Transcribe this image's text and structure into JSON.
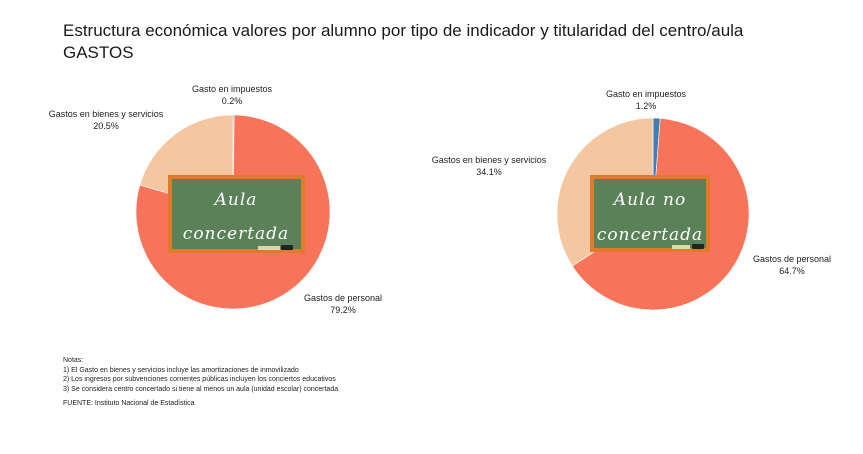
{
  "title": "Estructura económica valores por alumno por tipo de indicador y titularidad del centro/aula",
  "subtitle": "GASTOS",
  "colors": {
    "personal": "#f7735a",
    "bienes": "#f5c7a0",
    "impuestos": "#3f7fb5",
    "board": "#5a8158",
    "board_frame": "#e07b2a"
  },
  "chart_data": [
    {
      "type": "pie",
      "board_label": [
        "Aula",
        "concertada"
      ],
      "series": [
        {
          "label": "Gastos de personal",
          "value": 79.2,
          "value_label": "79.2%",
          "color": "#f7735a"
        },
        {
          "label": "Gastos en bienes y servicios",
          "value": 20.5,
          "value_label": "20.5%",
          "color": "#f5c7a0"
        },
        {
          "label": "Gasto en impuestos",
          "value": 0.2,
          "value_label": "0.2%",
          "color": "#3f7fb5"
        }
      ]
    },
    {
      "type": "pie",
      "board_label": [
        "Aula no",
        "concertada"
      ],
      "series": [
        {
          "label": "Gastos de personal",
          "value": 64.7,
          "value_label": "64.7%",
          "color": "#f7735a"
        },
        {
          "label": "Gastos en bienes y servicios",
          "value": 34.1,
          "value_label": "34.1%",
          "color": "#f5c7a0"
        },
        {
          "label": "Gasto en impuestos",
          "value": 1.2,
          "value_label": "1.2%",
          "color": "#3f7fb5"
        }
      ]
    }
  ],
  "notes": {
    "heading": "Notas:",
    "lines": [
      "1) El Gasto en bienes y servicios incluye las amortizaciones de inmovilizado",
      "2) Los ingresos por subvenciones corrientes públicas incluyen los conciertos educativos",
      "3) Se considera centro concertado si tiene al menos un aula (unidad escolar) concertada"
    ],
    "source": "FUENTE: Instituto Nacional de Estadística"
  }
}
